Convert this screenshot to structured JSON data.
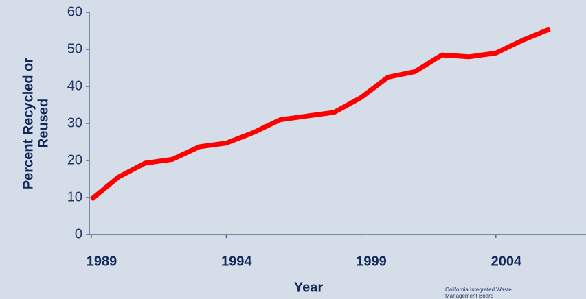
{
  "chart_data": {
    "type": "line",
    "ylabel": [
      "Percent Recycled or",
      "Reused"
    ],
    "xlabel": "Year",
    "credit": [
      "California Integrated Waste",
      "Management Board"
    ],
    "x": [
      1989,
      1990,
      1991,
      1992,
      1993,
      1994,
      1995,
      1996,
      1997,
      1998,
      1999,
      2000,
      2001,
      2002,
      2003,
      2004,
      2005,
      2006
    ],
    "series": [
      {
        "name": "Percent Recycled or Reused",
        "color": "#ff0000",
        "values": [
          9.5,
          15.5,
          19.3,
          20.3,
          23.7,
          24.7,
          27.5,
          31,
          32,
          33,
          37,
          42.5,
          44,
          48.5,
          48,
          49,
          52.5,
          55.5
        ]
      }
    ],
    "xlim": [
      1989,
      2006.5
    ],
    "xticks": [
      1989,
      1994,
      1999,
      2004
    ],
    "ylim": [
      0,
      60
    ],
    "yticks": [
      0,
      10,
      20,
      30,
      40,
      50,
      60
    ]
  }
}
